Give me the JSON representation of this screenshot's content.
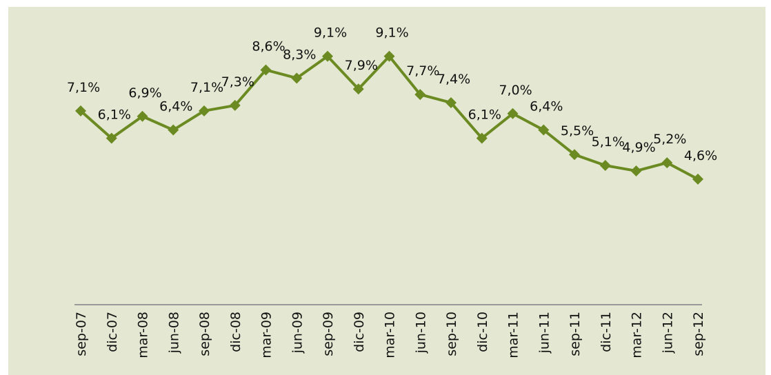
{
  "chart_data": {
    "type": "line",
    "categories": [
      "sep-07",
      "dic-07",
      "mar-08",
      "jun-08",
      "sep-08",
      "dic-08",
      "mar-09",
      "jun-09",
      "sep-09",
      "dic-09",
      "mar-10",
      "jun-10",
      "sep-10",
      "dic-10",
      "mar-11",
      "jun-11",
      "sep-11",
      "dic-11",
      "mar-12",
      "jun-12",
      "sep-12"
    ],
    "series": [
      {
        "name": null,
        "color": "#6b8a22",
        "values": [
          7.1,
          6.1,
          6.9,
          6.4,
          7.1,
          7.3,
          8.6,
          8.3,
          9.1,
          7.9,
          9.1,
          7.7,
          7.4,
          6.1,
          7.0,
          6.4,
          5.5,
          5.1,
          4.9,
          5.2,
          4.6
        ],
        "value_labels": [
          "7,1%",
          "6,1%",
          "6,9%",
          "6,4%",
          "7,1%",
          "7,3%",
          "8,6%",
          "8,3%",
          "9,1%",
          "7,9%",
          "9,1%",
          "7,7%",
          "7,4%",
          "6,1%",
          "7,0%",
          "6,4%",
          "5,5%",
          "5,1%",
          "4,9%",
          "5,2%",
          "4,6%"
        ]
      }
    ],
    "ylim": [
      0,
      10
    ]
  }
}
